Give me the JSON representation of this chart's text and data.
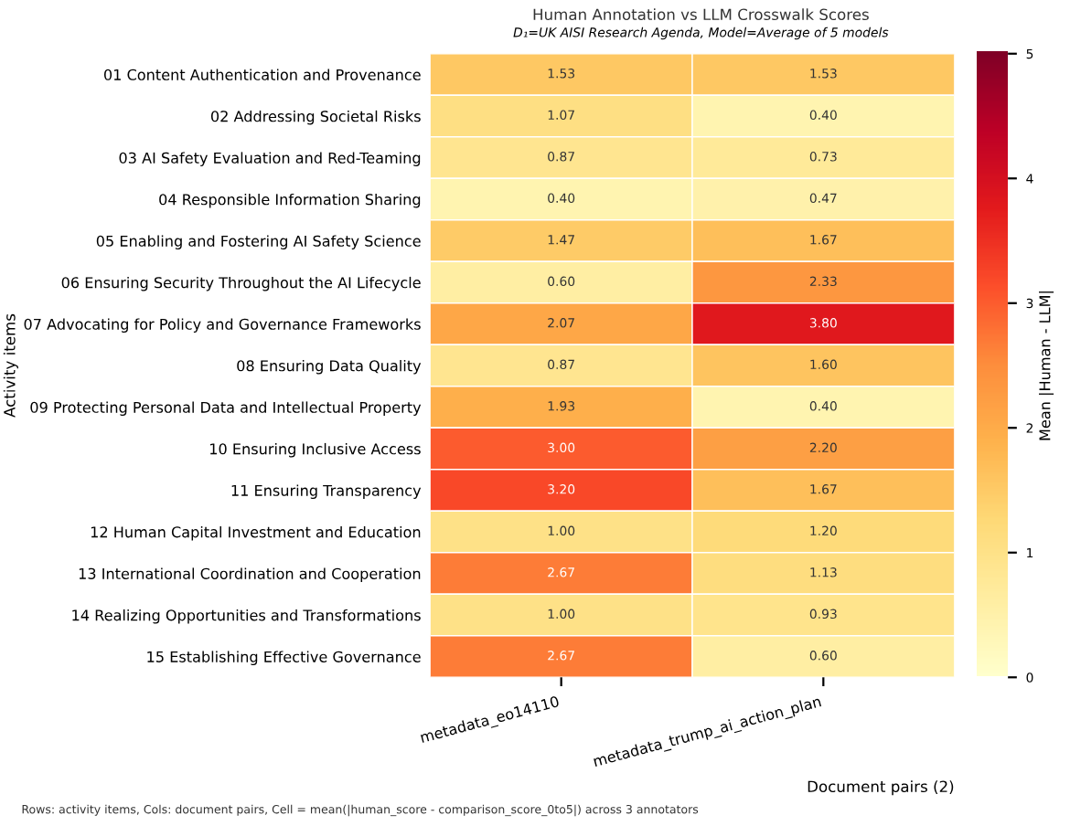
{
  "chart_data": {
    "type": "heatmap",
    "title": "Human Annotation vs LLM Crosswalk Scores",
    "subtitle": "D₁=UK AISI Research Agenda, Model=Average of 5 models",
    "xlabel": "Document pairs (2)",
    "ylabel": "Activity items",
    "clabel": "Mean |Human - LLM|",
    "categories": [
      "metadata_eo14110",
      "metadata_trump_ai_action_plan"
    ],
    "y_categories": [
      "01 Content Authentication and Provenance",
      "02 Addressing Societal Risks",
      "03 AI Safety Evaluation and Red-Teaming",
      "04 Responsible Information Sharing",
      "05 Enabling and Fostering AI Safety Science",
      "06 Ensuring Security Throughout the AI Lifecycle",
      "07 Advocating for Policy and Governance Frameworks",
      "08 Ensuring Data Quality",
      "09 Protecting Personal Data and Intellectual Property",
      "10 Ensuring Inclusive Access",
      "11 Ensuring Transparency",
      "12 Human Capital Investment and Education",
      "13 International Coordination and Cooperation",
      "14 Realizing Opportunities and Transformations",
      "15 Establishing Effective Governance"
    ],
    "cells": [
      [
        1.53,
        1.53
      ],
      [
        1.07,
        0.4
      ],
      [
        0.87,
        0.73
      ],
      [
        0.4,
        0.47
      ],
      [
        1.47,
        1.67
      ],
      [
        0.6,
        2.33
      ],
      [
        2.07,
        3.8
      ],
      [
        0.87,
        1.6
      ],
      [
        1.93,
        0.4
      ],
      [
        3.0,
        2.2
      ],
      [
        3.2,
        1.67
      ],
      [
        1.0,
        1.2
      ],
      [
        2.67,
        1.13
      ],
      [
        1.0,
        0.93
      ],
      [
        2.67,
        0.6
      ]
    ],
    "cell_labels": [
      [
        "1.53",
        "1.53"
      ],
      [
        "1.07",
        "0.40"
      ],
      [
        "0.87",
        "0.73"
      ],
      [
        "0.40",
        "0.47"
      ],
      [
        "1.47",
        "1.67"
      ],
      [
        "0.60",
        "2.33"
      ],
      [
        "2.07",
        "3.80"
      ],
      [
        "0.87",
        "1.60"
      ],
      [
        "1.93",
        "0.40"
      ],
      [
        "3.00",
        "2.20"
      ],
      [
        "3.20",
        "1.67"
      ],
      [
        "1.00",
        "1.20"
      ],
      [
        "2.67",
        "1.13"
      ],
      [
        "1.00",
        "0.93"
      ],
      [
        "2.67",
        "0.60"
      ]
    ],
    "clim": [
      0,
      5
    ],
    "cticks": [
      0,
      1,
      2,
      3,
      4,
      5
    ],
    "annotations": [
      "Rows: activity items, Cols: document pairs, Cell = mean(|human_score - comparison_score_0to5|) across 3 annotators"
    ]
  }
}
